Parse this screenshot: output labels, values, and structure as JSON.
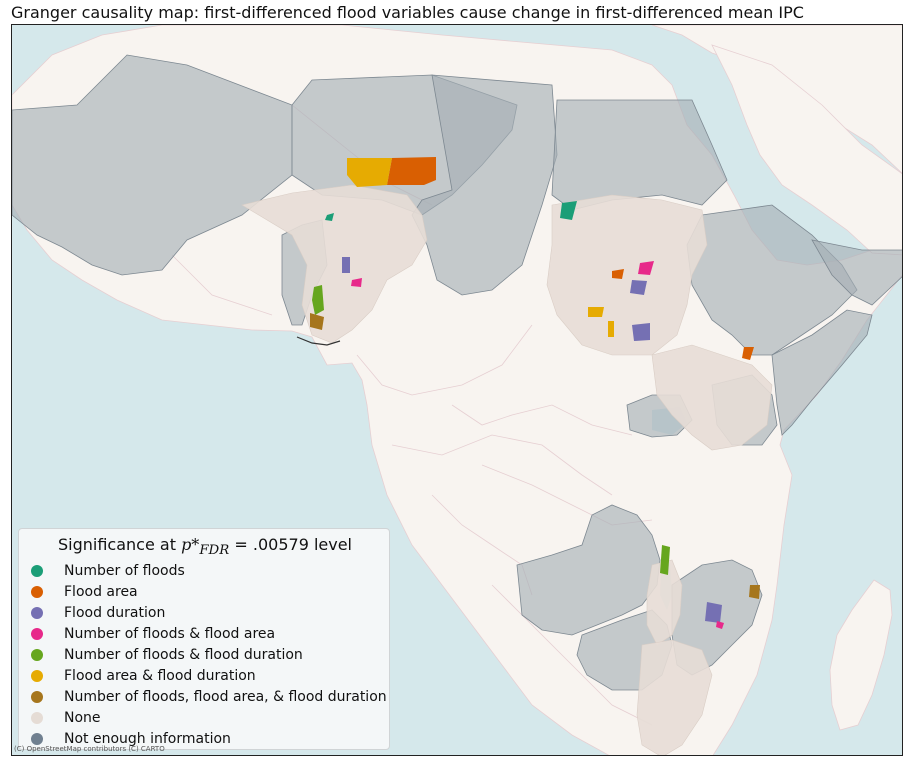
{
  "map": {
    "title": "Granger causality map: first-differenced flood variables cause change in first-differenced mean IPC",
    "attribution": "(C) OpenStreetMap contributors (C) CARTO",
    "basemap_colors": {
      "ocean": "#d5e8eb",
      "land": "#f8f4f0",
      "boundary": "#e6cfd2"
    },
    "legend": {
      "title_prefix": "Significance at ",
      "title_symbol": "p*",
      "title_subscript": "FDR",
      "title_value": "= .00579 level",
      "items": [
        {
          "label": "Number of floods",
          "color": "#1b9e77"
        },
        {
          "label": "Flood area",
          "color": "#d95f02"
        },
        {
          "label": "Flood duration",
          "color": "#7570b3"
        },
        {
          "label": "Number of floods & flood area",
          "color": "#e7298a"
        },
        {
          "label": "Number of floods & flood duration",
          "color": "#66a61e"
        },
        {
          "label": "Flood area & flood duration",
          "color": "#e6ab02"
        },
        {
          "label": "Number of floods, flood area, & flood duration",
          "color": "#a6761d"
        },
        {
          "label": "None",
          "color": "#e5dcd5"
        },
        {
          "label": "Not enough information",
          "color": "#708090"
        }
      ]
    }
  }
}
